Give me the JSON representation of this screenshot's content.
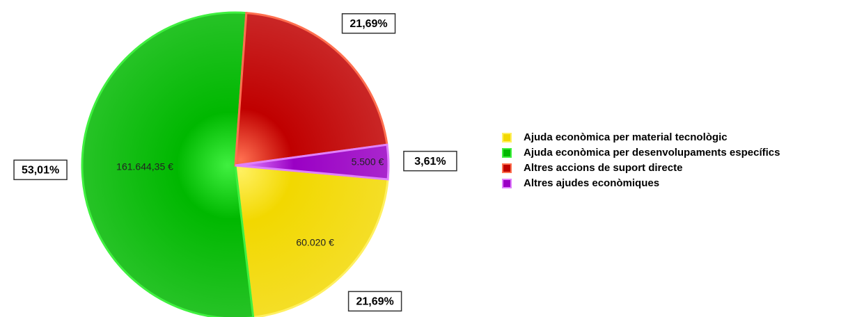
{
  "chart_data": {
    "type": "pie",
    "categories": [
      "Ajuda econòmica per material tecnològic",
      "Ajuda econòmica per desenvolupaments específics",
      "Altres accions de suport directe",
      "Altres ajudes econòmiques"
    ],
    "values": [
      21.69,
      53.01,
      21.69,
      3.61
    ],
    "value_labels": [
      "21,69%",
      "53,01%",
      "21,69%",
      "3,61%"
    ],
    "amount_labels": [
      "60.020 €",
      "161.644,35 €",
      null,
      "5.500 €"
    ],
    "colors": [
      "#f2d800",
      "#00b800",
      "#c00000",
      "#9a00c4"
    ],
    "edge_colors": [
      "#fff060",
      "#40f040",
      "#ff7050",
      "#e080ff"
    ],
    "legend": "right"
  }
}
